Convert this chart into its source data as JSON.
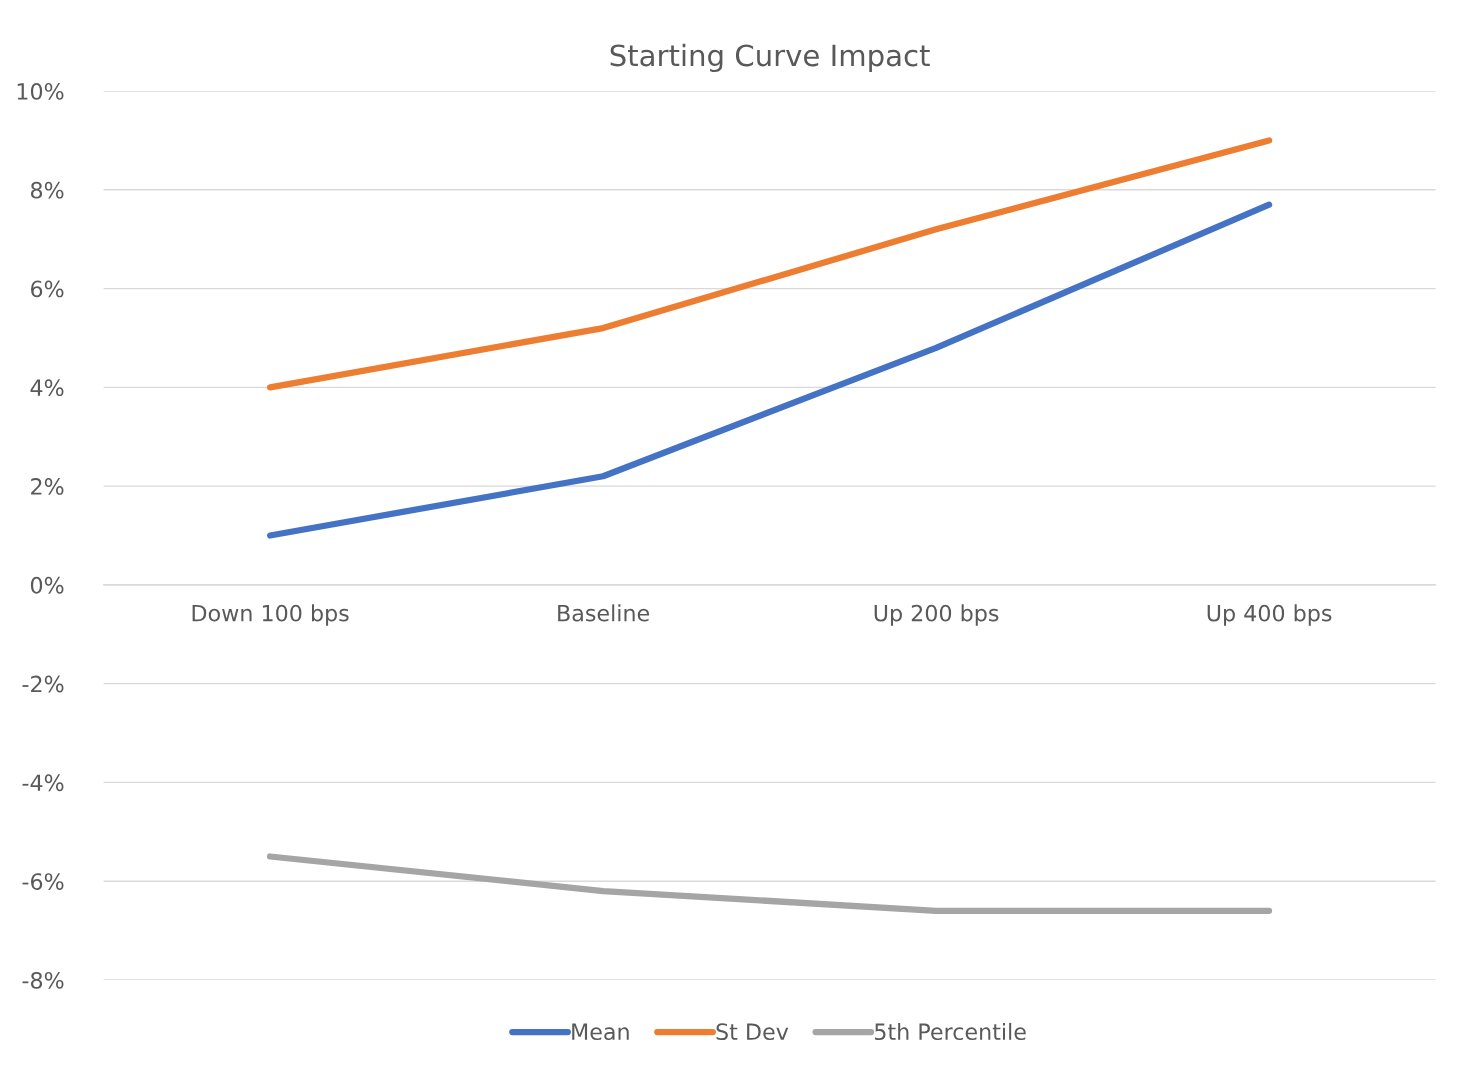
{
  "chart_data": {
    "type": "line",
    "title": "Starting Curve Impact",
    "categories": [
      "Down 100 bps",
      "Baseline",
      "Up 200 bps",
      "Up 400 bps"
    ],
    "series": [
      {
        "name": "Mean",
        "color": "#4472c4",
        "values": [
          1.0,
          2.2,
          4.8,
          7.7
        ]
      },
      {
        "name": "St Dev",
        "color": "#ed7d31",
        "values": [
          4.0,
          5.2,
          7.2,
          9.0
        ]
      },
      {
        "name": "5th Percentile",
        "color": "#a5a5a5",
        "values": [
          -5.5,
          -6.2,
          -6.6,
          -6.6
        ]
      }
    ],
    "ylim": [
      -8,
      10
    ],
    "yticks": [
      {
        "value": -8,
        "label": "-8%"
      },
      {
        "value": -6,
        "label": "-6%"
      },
      {
        "value": -4,
        "label": "-4%"
      },
      {
        "value": -2,
        "label": "-2%"
      },
      {
        "value": 0,
        "label": "0%"
      },
      {
        "value": 2,
        "label": "2%"
      },
      {
        "value": 4,
        "label": "4%"
      },
      {
        "value": 6,
        "label": "6%"
      },
      {
        "value": 8,
        "label": "8%"
      },
      {
        "value": 10,
        "label": "10%"
      }
    ],
    "grid": "y",
    "legend": "bottom",
    "marker": "none",
    "line_style": "solid"
  }
}
